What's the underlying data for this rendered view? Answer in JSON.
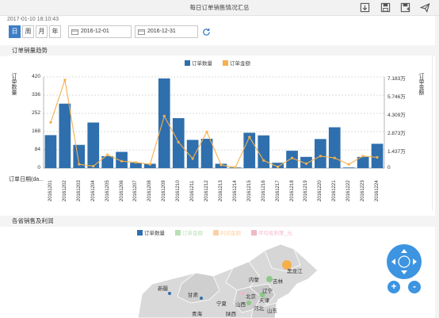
{
  "window": {
    "title": "每日订单销售情况汇总"
  },
  "toolbar": [
    "export-icon",
    "save-icon",
    "save-as-icon",
    "send-icon"
  ],
  "timestamp": "2017-01-10 18:10:43",
  "filters": {
    "periods": [
      "日",
      "周",
      "月",
      "年"
    ],
    "active_period": "日",
    "start_date": "2016-12-01",
    "end_date": "2016-12-31"
  },
  "trend_panel": {
    "title": "订单销量趋势"
  },
  "chart_data": {
    "type": "bar",
    "legend": [
      "订单数量",
      "订单金额"
    ],
    "left_axis_title": "订单数量",
    "right_axis_title": "订单金额",
    "x_axis_title": "订单日期(da...",
    "left_ticks": [
      "420",
      "336",
      "252",
      "168",
      "84",
      "0"
    ],
    "right_ticks": [
      "7.183万",
      "5.746万",
      "4.309万",
      "2.873万",
      "1.437万",
      "0"
    ],
    "ylim_left": [
      0,
      420
    ],
    "ylim_right": [
      0,
      71830
    ],
    "categories": [
      "20161201",
      "20161202",
      "20161203",
      "20161204",
      "20161205",
      "20161206",
      "20161207",
      "20161208",
      "20161209",
      "20161210",
      "20161211",
      "20161212",
      "20161213",
      "20161214",
      "20161215",
      "20161216",
      "20161217",
      "20161218",
      "20161219",
      "20161220",
      "20161221",
      "20161222",
      "20161223",
      "20161224"
    ],
    "series": [
      {
        "name": "订单数量",
        "type": "bar",
        "axis": "left",
        "color": "#2f6fad",
        "values": [
          152,
          297,
          107,
          210,
          55,
          75,
          25,
          20,
          413,
          230,
          130,
          135,
          20,
          3,
          163,
          151,
          25,
          80,
          52,
          134,
          188,
          3,
          52,
          112
        ]
      },
      {
        "name": "订单金额",
        "type": "line",
        "axis": "right",
        "color": "#f5b04c",
        "values": [
          36000,
          69500,
          3000,
          1500,
          10500,
          5500,
          4500,
          3000,
          41000,
          20500,
          7500,
          28500,
          2500,
          500,
          24500,
          6000,
          1000,
          8000,
          3500,
          9500,
          8000,
          3000,
          9500,
          8500
        ]
      }
    ]
  },
  "map_panel": {
    "title": "各省销售及利润",
    "legend": [
      {
        "label": "订单数量",
        "color": "#2f6fad"
      },
      {
        "label": "订单金额",
        "color": "#b9dfb4"
      },
      {
        "label": "利润金额",
        "color": "#f8d2a6"
      },
      {
        "label": "平均毛利率_元",
        "color": "#f2b8c6"
      }
    ],
    "provinces": [
      "黑龙江",
      "吉林",
      "辽宁",
      "内蒙",
      "新疆",
      "甘肃",
      "宁夏",
      "山西",
      "北京",
      "天津",
      "陕西",
      "青海",
      "河北",
      "山东"
    ]
  },
  "map_controls": {
    "zoom_in": "+",
    "zoom_out": "-"
  }
}
